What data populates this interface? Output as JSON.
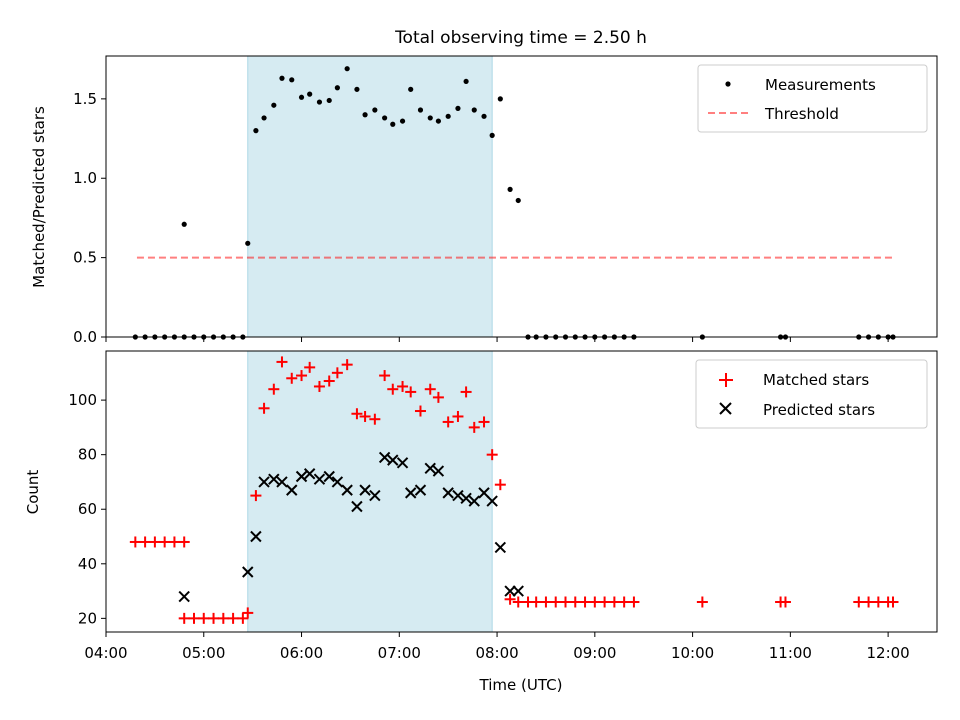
{
  "title": "Total observing time = 2.50 h",
  "colors": {
    "shade": "#add8e6",
    "measurements": "#000000",
    "threshold": "#ff0000",
    "matched": "#ff0000",
    "predicted": "#000000"
  },
  "chart_data": [
    {
      "type": "scatter",
      "panel": "top",
      "ylabel": "Matched/Predicted stars",
      "xlim": [
        "04:00",
        "12:30"
      ],
      "ylim": [
        0,
        1.77
      ],
      "yticks": [
        0.0,
        0.5,
        1.0,
        1.5
      ],
      "yticklabels": [
        "0.0",
        "0.5",
        "1.0",
        "1.5"
      ],
      "legend_position": "top-right",
      "legend": [
        "Measurements",
        "Threshold"
      ],
      "shaded_interval": [
        "05:27",
        "07:57"
      ],
      "threshold": {
        "name": "Threshold",
        "value": 0.5,
        "x": [
          "04:19",
          "12:03"
        ]
      },
      "series": [
        {
          "name": "Measurements",
          "points": [
            [
              "04:18",
              0
            ],
            [
              "04:24",
              0
            ],
            [
              "04:30",
              0
            ],
            [
              "04:36",
              0
            ],
            [
              "04:42",
              0
            ],
            [
              "04:48",
              0
            ],
            [
              "04:48",
              0.71
            ],
            [
              "04:54",
              0
            ],
            [
              "05:00",
              0
            ],
            [
              "05:06",
              0
            ],
            [
              "05:12",
              0
            ],
            [
              "05:18",
              0
            ],
            [
              "05:24",
              0
            ],
            [
              "05:27",
              0.59
            ],
            [
              "05:32",
              1.3
            ],
            [
              "05:37",
              1.38
            ],
            [
              "05:43",
              1.46
            ],
            [
              "05:48",
              1.63
            ],
            [
              "05:54",
              1.62
            ],
            [
              "06:00",
              1.51
            ],
            [
              "06:05",
              1.53
            ],
            [
              "06:11",
              1.48
            ],
            [
              "06:17",
              1.49
            ],
            [
              "06:22",
              1.57
            ],
            [
              "06:28",
              1.69
            ],
            [
              "06:34",
              1.56
            ],
            [
              "06:39",
              1.4
            ],
            [
              "06:45",
              1.43
            ],
            [
              "06:51",
              1.38
            ],
            [
              "06:56",
              1.34
            ],
            [
              "07:02",
              1.36
            ],
            [
              "07:07",
              1.56
            ],
            [
              "07:13",
              1.43
            ],
            [
              "07:19",
              1.38
            ],
            [
              "07:24",
              1.36
            ],
            [
              "07:30",
              1.39
            ],
            [
              "07:36",
              1.44
            ],
            [
              "07:41",
              1.61
            ],
            [
              "07:46",
              1.43
            ],
            [
              "07:52",
              1.39
            ],
            [
              "07:57",
              1.27
            ],
            [
              "08:02",
              1.5
            ],
            [
              "08:08",
              0.93
            ],
            [
              "08:13",
              0.86
            ],
            [
              "08:19",
              0
            ],
            [
              "08:24",
              0
            ],
            [
              "08:30",
              0
            ],
            [
              "08:36",
              0
            ],
            [
              "08:42",
              0
            ],
            [
              "08:48",
              0
            ],
            [
              "08:54",
              0
            ],
            [
              "09:00",
              0
            ],
            [
              "09:06",
              0
            ],
            [
              "09:12",
              0
            ],
            [
              "09:18",
              0
            ],
            [
              "09:24",
              0
            ],
            [
              "10:06",
              0
            ],
            [
              "10:54",
              0
            ],
            [
              "10:57",
              0
            ],
            [
              "11:42",
              0
            ],
            [
              "11:48",
              0
            ],
            [
              "11:54",
              0
            ],
            [
              "12:00",
              0
            ],
            [
              "12:03",
              0
            ]
          ]
        }
      ]
    },
    {
      "type": "scatter",
      "panel": "bottom",
      "xlabel": "Time (UTC)",
      "ylabel": "Count",
      "xlim": [
        "04:00",
        "12:30"
      ],
      "xticks": [
        "04:00",
        "05:00",
        "06:00",
        "07:00",
        "08:00",
        "09:00",
        "10:00",
        "11:00",
        "12:00"
      ],
      "ylim": [
        15,
        118
      ],
      "yticks": [
        20,
        40,
        60,
        80,
        100
      ],
      "legend_position": "top-right",
      "legend": [
        "Matched stars",
        "Predicted stars"
      ],
      "shaded_interval": [
        "05:27",
        "07:57"
      ],
      "series": [
        {
          "name": "Matched stars",
          "marker": "plus",
          "points": [
            [
              "04:18",
              48
            ],
            [
              "04:24",
              48
            ],
            [
              "04:30",
              48
            ],
            [
              "04:36",
              48
            ],
            [
              "04:42",
              48
            ],
            [
              "04:48",
              48
            ],
            [
              "04:48",
              20
            ],
            [
              "04:54",
              20
            ],
            [
              "05:00",
              20
            ],
            [
              "05:06",
              20
            ],
            [
              "05:12",
              20
            ],
            [
              "05:18",
              20
            ],
            [
              "05:24",
              20
            ],
            [
              "05:27",
              22
            ],
            [
              "05:32",
              65
            ],
            [
              "05:37",
              97
            ],
            [
              "05:43",
              104
            ],
            [
              "05:48",
              114
            ],
            [
              "05:54",
              108
            ],
            [
              "06:00",
              109
            ],
            [
              "06:05",
              112
            ],
            [
              "06:11",
              105
            ],
            [
              "06:17",
              107
            ],
            [
              "06:22",
              110
            ],
            [
              "06:28",
              113
            ],
            [
              "06:34",
              95
            ],
            [
              "06:39",
              94
            ],
            [
              "06:45",
              93
            ],
            [
              "06:51",
              109
            ],
            [
              "06:56",
              104
            ],
            [
              "07:02",
              105
            ],
            [
              "07:07",
              103
            ],
            [
              "07:13",
              96
            ],
            [
              "07:19",
              104
            ],
            [
              "07:24",
              101
            ],
            [
              "07:30",
              92
            ],
            [
              "07:36",
              94
            ],
            [
              "07:41",
              103
            ],
            [
              "07:46",
              90
            ],
            [
              "07:52",
              92
            ],
            [
              "07:57",
              80
            ],
            [
              "08:02",
              69
            ],
            [
              "08:08",
              27
            ],
            [
              "08:13",
              26
            ],
            [
              "08:19",
              26
            ],
            [
              "08:24",
              26
            ],
            [
              "08:30",
              26
            ],
            [
              "08:36",
              26
            ],
            [
              "08:42",
              26
            ],
            [
              "08:48",
              26
            ],
            [
              "08:54",
              26
            ],
            [
              "09:00",
              26
            ],
            [
              "09:06",
              26
            ],
            [
              "09:12",
              26
            ],
            [
              "09:18",
              26
            ],
            [
              "09:24",
              26
            ],
            [
              "10:06",
              26
            ],
            [
              "10:54",
              26
            ],
            [
              "10:57",
              26
            ],
            [
              "11:42",
              26
            ],
            [
              "11:48",
              26
            ],
            [
              "11:54",
              26
            ],
            [
              "12:00",
              26
            ],
            [
              "12:03",
              26
            ]
          ]
        },
        {
          "name": "Predicted stars",
          "marker": "x",
          "points": [
            [
              "04:48",
              28
            ],
            [
              "05:27",
              37
            ],
            [
              "05:32",
              50
            ],
            [
              "05:37",
              70
            ],
            [
              "05:43",
              71
            ],
            [
              "05:48",
              70
            ],
            [
              "05:54",
              67
            ],
            [
              "06:00",
              72
            ],
            [
              "06:05",
              73
            ],
            [
              "06:11",
              71
            ],
            [
              "06:17",
              72
            ],
            [
              "06:22",
              70
            ],
            [
              "06:28",
              67
            ],
            [
              "06:34",
              61
            ],
            [
              "06:39",
              67
            ],
            [
              "06:45",
              65
            ],
            [
              "06:51",
              79
            ],
            [
              "06:56",
              78
            ],
            [
              "07:02",
              77
            ],
            [
              "07:07",
              66
            ],
            [
              "07:13",
              67
            ],
            [
              "07:19",
              75
            ],
            [
              "07:24",
              74
            ],
            [
              "07:30",
              66
            ],
            [
              "07:36",
              65
            ],
            [
              "07:41",
              64
            ],
            [
              "07:46",
              63
            ],
            [
              "07:52",
              66
            ],
            [
              "07:57",
              63
            ],
            [
              "08:02",
              46
            ],
            [
              "08:08",
              30
            ],
            [
              "08:13",
              30
            ]
          ]
        }
      ]
    }
  ]
}
